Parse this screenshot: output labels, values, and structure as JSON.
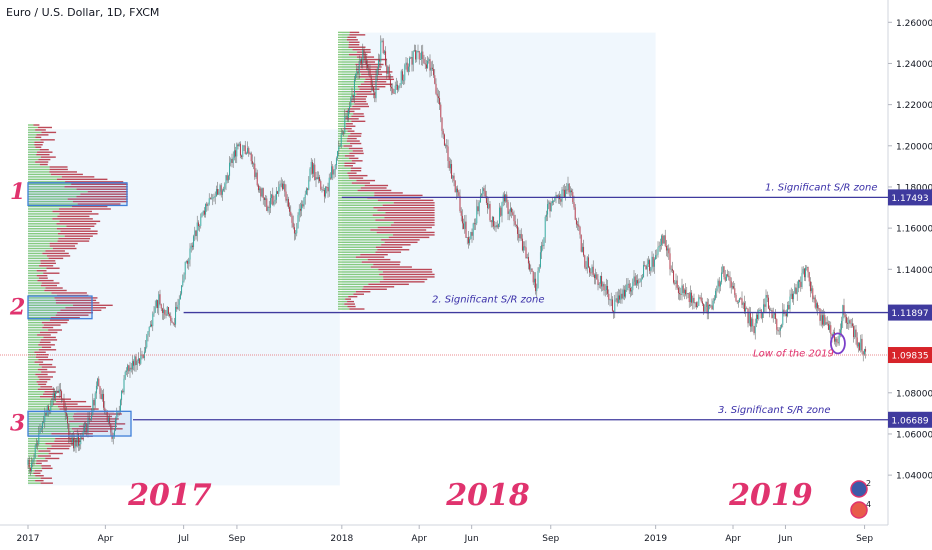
{
  "header": {
    "title": "Euro / U.S. Dollar, 1D, FXCM"
  },
  "colors": {
    "up": "#26a69a",
    "down": "#b2293a",
    "wick": "#555555",
    "zone_line": "#3f3a9e",
    "zone_text": "#3a2fa8",
    "year_text": "#e0336e",
    "price_tag_bg": "#d7242a",
    "level_tag_bg": "#3f3a9e",
    "box_stroke": "#3f7fd9",
    "vp_up": "#73c26b",
    "vp_down": "#b2293a",
    "panel_bg": "#eaf3fc"
  },
  "chart_data": {
    "type": "candlestick",
    "symbol": "EURUSD",
    "timeframe": "1D",
    "y_axis": {
      "side": "right",
      "ylim": [
        1.025,
        1.265
      ],
      "ticks": [
        "1.26000",
        "1.24000",
        "1.22000",
        "1.20000",
        "1.18000",
        "1.16000",
        "1.14000",
        "1.12000",
        "1.10000",
        "1.08000",
        "1.06000",
        "1.04000"
      ],
      "tick_values": [
        1.26,
        1.24,
        1.22,
        1.2,
        1.18,
        1.16,
        1.14,
        1.12,
        1.1,
        1.08,
        1.06,
        1.04
      ]
    },
    "x_axis": {
      "ticks": [
        "2017",
        "Apr",
        "Jul",
        "Sep",
        "2018",
        "Apr",
        "Jun",
        "Sep",
        "2019",
        "Apr",
        "Jun",
        "Sep"
      ],
      "tick_dates": [
        "2017-01-01",
        "2017-04-01",
        "2017-07-01",
        "2017-09-01",
        "2018-01-01",
        "2018-04-01",
        "2018-06-01",
        "2018-09-01",
        "2019-01-01",
        "2019-04-01",
        "2019-06-01",
        "2019-09-01"
      ],
      "start": "2017-01-01",
      "end": "2019-09-05"
    },
    "path": [
      {
        "date": "2017-01-01",
        "price": 1.045
      },
      {
        "date": "2017-01-03",
        "price": 1.04
      },
      {
        "date": "2017-01-20",
        "price": 1.07
      },
      {
        "date": "2017-02-07",
        "price": 1.082
      },
      {
        "date": "2017-02-20",
        "price": 1.055
      },
      {
        "date": "2017-03-08",
        "price": 1.06
      },
      {
        "date": "2017-03-24",
        "price": 1.085
      },
      {
        "date": "2017-04-10",
        "price": 1.058
      },
      {
        "date": "2017-04-24",
        "price": 1.09
      },
      {
        "date": "2017-05-15",
        "price": 1.098
      },
      {
        "date": "2017-06-01",
        "price": 1.125
      },
      {
        "date": "2017-06-20",
        "price": 1.115
      },
      {
        "date": "2017-07-01",
        "price": 1.14
      },
      {
        "date": "2017-07-20",
        "price": 1.165
      },
      {
        "date": "2017-08-15",
        "price": 1.18
      },
      {
        "date": "2017-09-01",
        "price": 1.2
      },
      {
        "date": "2017-09-15",
        "price": 1.195
      },
      {
        "date": "2017-10-06",
        "price": 1.17
      },
      {
        "date": "2017-10-25",
        "price": 1.18
      },
      {
        "date": "2017-11-07",
        "price": 1.157
      },
      {
        "date": "2017-11-27",
        "price": 1.19
      },
      {
        "date": "2017-12-12",
        "price": 1.175
      },
      {
        "date": "2017-12-29",
        "price": 1.2
      },
      {
        "date": "2018-01-25",
        "price": 1.245
      },
      {
        "date": "2018-02-08",
        "price": 1.225
      },
      {
        "date": "2018-02-16",
        "price": 1.25
      },
      {
        "date": "2018-03-01",
        "price": 1.225
      },
      {
        "date": "2018-03-27",
        "price": 1.245
      },
      {
        "date": "2018-04-17",
        "price": 1.238
      },
      {
        "date": "2018-05-01",
        "price": 1.2
      },
      {
        "date": "2018-05-29",
        "price": 1.152
      },
      {
        "date": "2018-06-14",
        "price": 1.18
      },
      {
        "date": "2018-06-28",
        "price": 1.158
      },
      {
        "date": "2018-07-09",
        "price": 1.175
      },
      {
        "date": "2018-08-15",
        "price": 1.132
      },
      {
        "date": "2018-08-28",
        "price": 1.17
      },
      {
        "date": "2018-09-24",
        "price": 1.18
      },
      {
        "date": "2018-10-09",
        "price": 1.145
      },
      {
        "date": "2018-10-31",
        "price": 1.133
      },
      {
        "date": "2018-11-13",
        "price": 1.122
      },
      {
        "date": "2018-12-31",
        "price": 1.145
      },
      {
        "date": "2019-01-10",
        "price": 1.155
      },
      {
        "date": "2019-01-24",
        "price": 1.132
      },
      {
        "date": "2019-03-07",
        "price": 1.12
      },
      {
        "date": "2019-03-20",
        "price": 1.14
      },
      {
        "date": "2019-04-25",
        "price": 1.112
      },
      {
        "date": "2019-05-10",
        "price": 1.125
      },
      {
        "date": "2019-05-23",
        "price": 1.112
      },
      {
        "date": "2019-06-25",
        "price": 1.14
      },
      {
        "date": "2019-07-10",
        "price": 1.118
      },
      {
        "date": "2019-08-01",
        "price": 1.104
      },
      {
        "date": "2019-08-06",
        "price": 1.12
      },
      {
        "date": "2019-08-20",
        "price": 1.108
      },
      {
        "date": "2019-09-03",
        "price": 1.0984
      }
    ],
    "levels": [
      {
        "name": "1. Significant S/R zone",
        "value": 1.17493,
        "tag": "1.17493",
        "from": "2018-01-01"
      },
      {
        "name": "2. Significant S/R zone",
        "value": 1.11897,
        "tag": "1.11897",
        "from": "2017-07-01"
      },
      {
        "name": "3. Significant S/R zone",
        "value": 1.06689,
        "tag": "1.06689",
        "from": "2017-04-15"
      }
    ],
    "last_price": {
      "value": 1.09835,
      "tag": "1.09835"
    },
    "annotation": {
      "text": "Low of the 2019",
      "date": "2019-08-01",
      "value": 1.104
    },
    "year_labels": [
      {
        "text": "2017",
        "date": "2017-06-15"
      },
      {
        "text": "2018",
        "date": "2018-06-20"
      },
      {
        "text": "2019",
        "date": "2019-05-15"
      }
    ],
    "zone_markers": [
      {
        "number": "1",
        "value": 1.178
      },
      {
        "number": "2",
        "value": 1.122
      },
      {
        "number": "3",
        "value": 1.0655
      }
    ],
    "volume_profiles": [
      {
        "period": "2017",
        "range": [
          1.035,
          1.21
        ],
        "peaks": [
          {
            "center": 1.178,
            "strength": 1.0,
            "width": 0.008
          },
          {
            "center": 1.122,
            "strength": 0.6,
            "width": 0.008
          },
          {
            "center": 1.066,
            "strength": 0.8,
            "width": 0.01
          },
          {
            "center": 1.16,
            "strength": 0.45,
            "width": 0.015
          }
        ]
      },
      {
        "period": "2018",
        "range": [
          1.12,
          1.255
        ],
        "peaks": [
          {
            "center": 1.17,
            "strength": 1.0,
            "width": 0.009
          },
          {
            "center": 1.137,
            "strength": 0.9,
            "width": 0.006
          },
          {
            "center": 1.155,
            "strength": 0.7,
            "width": 0.009
          },
          {
            "center": 1.235,
            "strength": 0.35,
            "width": 0.012
          }
        ]
      }
    ],
    "grid": false,
    "legend": "none"
  }
}
